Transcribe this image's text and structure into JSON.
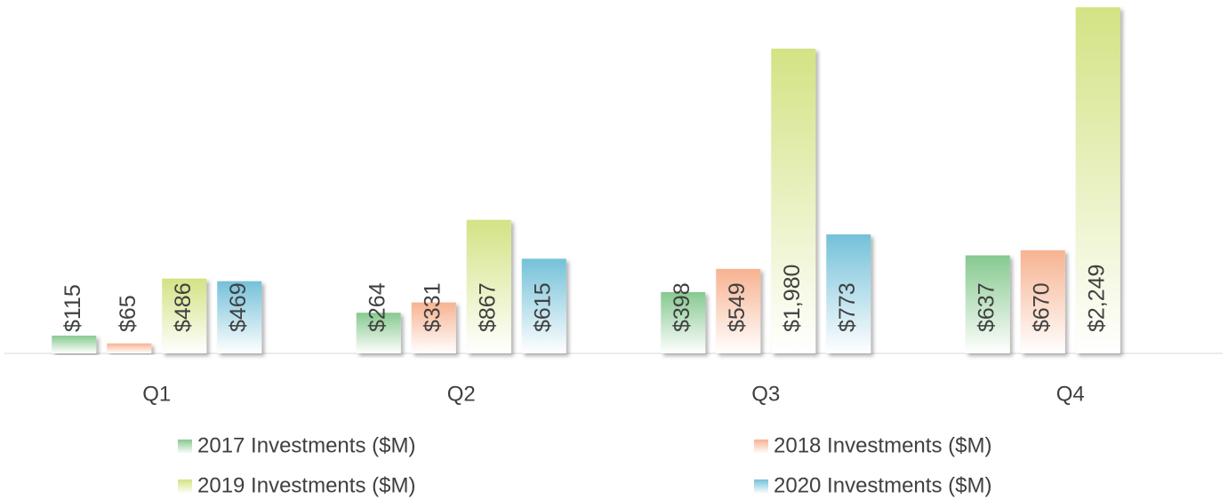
{
  "chart_data": {
    "type": "bar",
    "categories": [
      "Q1",
      "Q2",
      "Q3",
      "Q4"
    ],
    "series": [
      {
        "name": "2017 Investments ($M)",
        "color": "#86c98f",
        "values": [
          115,
          264,
          398,
          637
        ],
        "value_labels": [
          "$115",
          "$264",
          "$398",
          "$637"
        ]
      },
      {
        "name": "2018 Investments ($M)",
        "color": "#f7b391",
        "values": [
          65,
          331,
          549,
          670
        ],
        "value_labels": [
          "$65",
          "$331",
          "$549",
          "$670"
        ]
      },
      {
        "name": "2019 Investments ($M)",
        "color": "#d3e384",
        "values": [
          486,
          867,
          1980,
          2249
        ],
        "value_labels": [
          "$486",
          "$867",
          "$1,980",
          "$2,249"
        ]
      },
      {
        "name": "2020 Investments ($M)",
        "color": "#74c1d9",
        "values": [
          469,
          615,
          773,
          null
        ],
        "value_labels": [
          "$469",
          "$615",
          "$773",
          null
        ]
      }
    ],
    "ylim": [
      0,
      2250
    ]
  }
}
